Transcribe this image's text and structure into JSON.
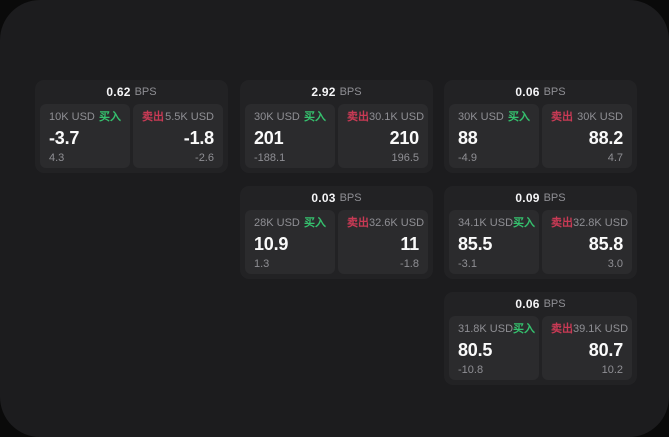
{
  "labels": {
    "bps_unit": "BPS",
    "buy": "买入",
    "sell": "卖出"
  },
  "colors": {
    "background": "#0a0a0a",
    "panel": "#1c1c1e",
    "card": "#222224",
    "side_panel": "#2b2b2d",
    "text_primary": "#fafafa",
    "text_secondary": "#8f8f94",
    "buy_green": "#35c16e",
    "sell_red": "#c93a55"
  },
  "cards": [
    {
      "col": 1,
      "row": 1,
      "bps": "0.62",
      "buy": {
        "amount": "10K USD",
        "price": "-3.7",
        "delta": "4.3"
      },
      "sell": {
        "amount": "5.5K USD",
        "price": "-1.8",
        "delta": "-2.6"
      }
    },
    {
      "col": 2,
      "row": 1,
      "bps": "2.92",
      "buy": {
        "amount": "30K USD",
        "price": "201",
        "delta": "-188.1"
      },
      "sell": {
        "amount": "30.1K USD",
        "price": "210",
        "delta": "196.5"
      }
    },
    {
      "col": 3,
      "row": 1,
      "bps": "0.06",
      "buy": {
        "amount": "30K USD",
        "price": "88",
        "delta": "-4.9"
      },
      "sell": {
        "amount": "30K USD",
        "price": "88.2",
        "delta": "4.7"
      }
    },
    {
      "col": 2,
      "row": 2,
      "bps": "0.03",
      "buy": {
        "amount": "28K USD",
        "price": "10.9",
        "delta": "1.3"
      },
      "sell": {
        "amount": "32.6K USD",
        "price": "11",
        "delta": "-1.8"
      }
    },
    {
      "col": 3,
      "row": 2,
      "bps": "0.09",
      "buy": {
        "amount": "34.1K USD",
        "price": "85.5",
        "delta": "-3.1"
      },
      "sell": {
        "amount": "32.8K USD",
        "price": "85.8",
        "delta": "3.0"
      }
    },
    {
      "col": 3,
      "row": 3,
      "bps": "0.06",
      "buy": {
        "amount": "31.8K USD",
        "price": "80.5",
        "delta": "-10.8"
      },
      "sell": {
        "amount": "39.1K USD",
        "price": "80.7",
        "delta": "10.2"
      }
    }
  ]
}
